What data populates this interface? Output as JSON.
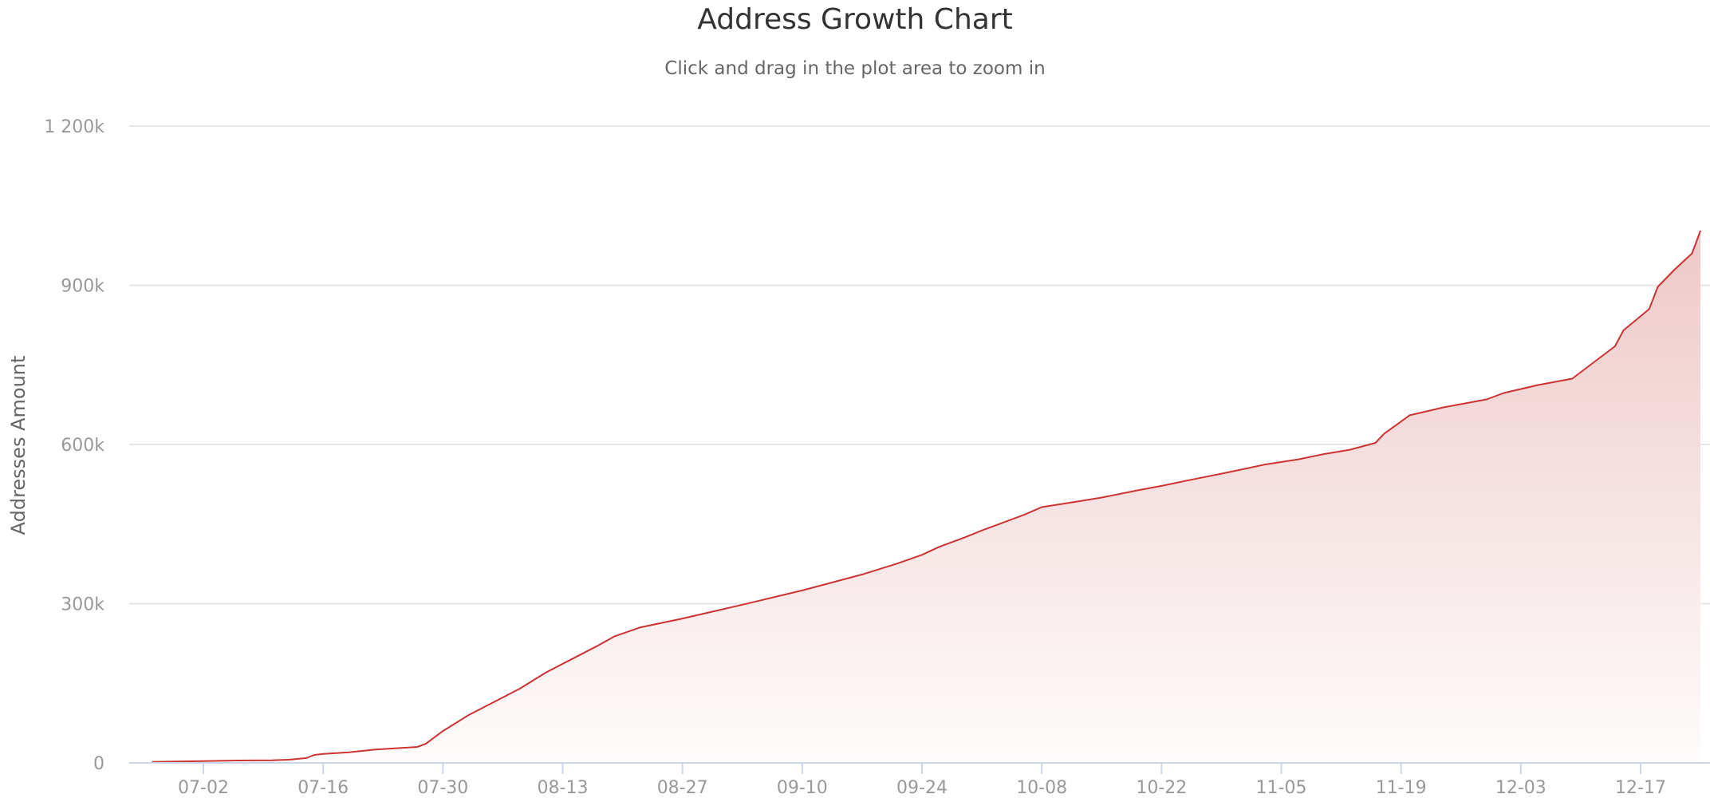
{
  "chart_data": {
    "type": "area",
    "title": "Address Growth Chart",
    "subtitle": "Click and drag in the plot area to zoom in",
    "xlabel": "",
    "ylabel": "Addresses Amount",
    "grid": true,
    "legend": "none",
    "color": "#cc3333",
    "fill_top": "#eec8c8",
    "fill_bottom": "#fefcfc",
    "x_ticks": [
      "07-02",
      "07-16",
      "07-30",
      "08-13",
      "08-27",
      "09-10",
      "09-24",
      "10-08",
      "10-22",
      "11-05",
      "11-19",
      "12-03",
      "12-17"
    ],
    "y_ticks": [
      "0",
      "300k",
      "600k",
      "900k",
      "1 200k"
    ],
    "y_tick_values": [
      0,
      300000,
      600000,
      900000,
      1200000
    ],
    "ylim": [
      0,
      1200000
    ],
    "xlim": [
      "06-24",
      "12-26"
    ],
    "series": [
      {
        "points": [
          [
            "06-26",
            2000
          ],
          [
            "07-02",
            3500
          ],
          [
            "07-06",
            4500
          ],
          [
            "07-10",
            5000
          ],
          [
            "07-12",
            6000
          ],
          [
            "07-14",
            9000
          ],
          [
            "07-15",
            15000
          ],
          [
            "07-16",
            17000
          ],
          [
            "07-19",
            20000
          ],
          [
            "07-22",
            25000
          ],
          [
            "07-27",
            30000
          ],
          [
            "07-28",
            36000
          ],
          [
            "07-30",
            60000
          ],
          [
            "08-02",
            90000
          ],
          [
            "08-05",
            115000
          ],
          [
            "08-08",
            140000
          ],
          [
            "08-11",
            170000
          ],
          [
            "08-14",
            195000
          ],
          [
            "08-17",
            220000
          ],
          [
            "08-19",
            238000
          ],
          [
            "08-22",
            255000
          ],
          [
            "08-27",
            272000
          ],
          [
            "09-03",
            298000
          ],
          [
            "09-10",
            325000
          ],
          [
            "09-17",
            355000
          ],
          [
            "09-21",
            375000
          ],
          [
            "09-24",
            392000
          ],
          [
            "09-26",
            407000
          ],
          [
            "09-29",
            425000
          ],
          [
            "10-01",
            438000
          ],
          [
            "10-03",
            450000
          ],
          [
            "10-06",
            468000
          ],
          [
            "10-08",
            482000
          ],
          [
            "10-12",
            492000
          ],
          [
            "10-15",
            500000
          ],
          [
            "10-19",
            513000
          ],
          [
            "10-22",
            522000
          ],
          [
            "10-25",
            532000
          ],
          [
            "10-29",
            545000
          ],
          [
            "11-01",
            555000
          ],
          [
            "11-03",
            562000
          ],
          [
            "11-07",
            572000
          ],
          [
            "11-10",
            582000
          ],
          [
            "11-13",
            590000
          ],
          [
            "11-16",
            603000
          ],
          [
            "11-17",
            620000
          ],
          [
            "11-20",
            655000
          ],
          [
            "11-24",
            670000
          ],
          [
            "11-29",
            685000
          ],
          [
            "12-01",
            697000
          ],
          [
            "12-05",
            712000
          ],
          [
            "12-09",
            724000
          ],
          [
            "12-14",
            785000
          ],
          [
            "12-15",
            815000
          ],
          [
            "12-18",
            855000
          ],
          [
            "12-19",
            897000
          ],
          [
            "12-21",
            930000
          ],
          [
            "12-23",
            960000
          ],
          [
            "12-24",
            1003000
          ]
        ]
      }
    ]
  }
}
